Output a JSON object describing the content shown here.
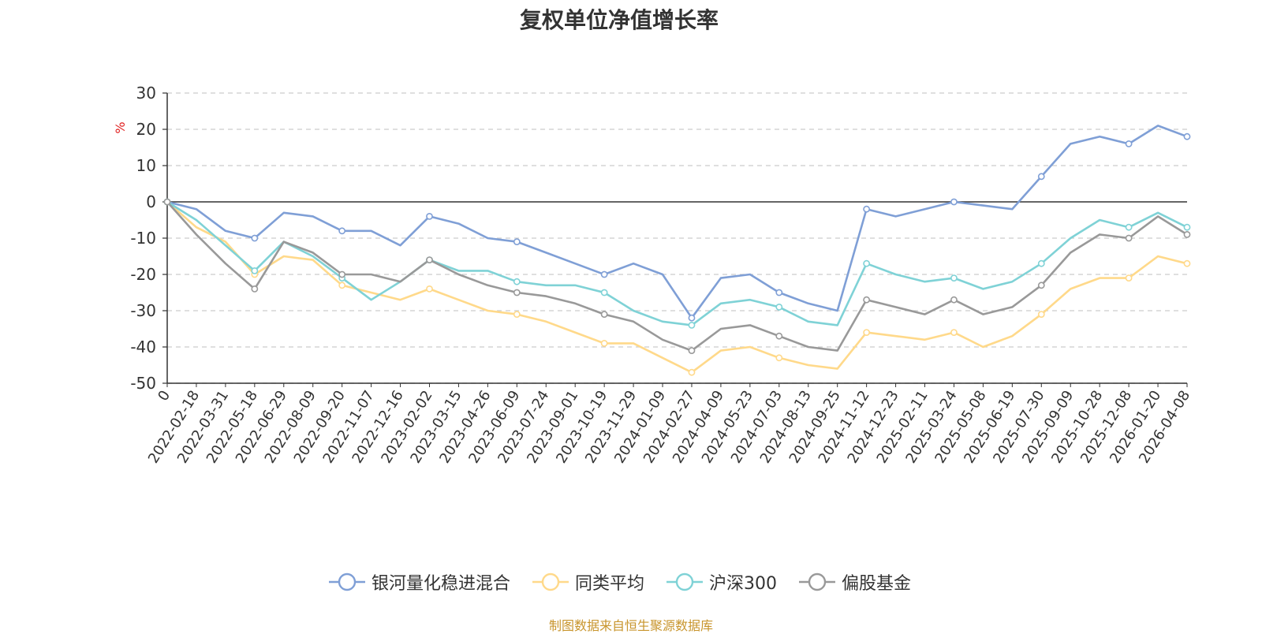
{
  "chart_data": {
    "type": "line",
    "title": "复权单位净值增长率",
    "ylabel": "%",
    "xlabel": "",
    "ylim": [
      -50,
      30
    ],
    "yticks": [
      30,
      20,
      10,
      0,
      -10,
      -20,
      -30,
      -40,
      -50
    ],
    "grid": true,
    "legend_position": "bottom",
    "categories": [
      "0",
      "2022-02-18",
      "2022-03-31",
      "2022-05-18",
      "2022-06-29",
      "2022-08-09",
      "2022-09-20",
      "2022-11-07",
      "2022-12-16",
      "2023-02-02",
      "2023-03-15",
      "2023-04-26",
      "2023-06-09",
      "2023-07-24",
      "2023-09-01",
      "2023-10-19",
      "2023-11-29",
      "2024-01-09",
      "2024-02-27",
      "2024-04-09",
      "2024-05-23",
      "2024-07-03",
      "2024-08-13",
      "2024-09-25",
      "2024-11-12",
      "2024-12-23",
      "2025-02-11",
      "2025-03-24",
      "2025-05-08",
      "2025-06-19",
      "2025-07-30",
      "2025-09-09",
      "2025-10-28",
      "2025-12-08",
      "2026-01-20",
      "2026-04-08"
    ],
    "series": [
      {
        "name": "银河量化稳进混合",
        "color": "#7f9fd6",
        "values": [
          0,
          -2,
          -8,
          -10,
          -3,
          -4,
          -8,
          -8,
          -12,
          -4,
          -6,
          -10,
          -11,
          -14,
          -17,
          -20,
          -17,
          -20,
          -32,
          -21,
          -20,
          -25,
          -28,
          -30,
          -2,
          -4,
          -2,
          0,
          -1,
          -2,
          7,
          16,
          18,
          16,
          21,
          18
        ]
      },
      {
        "name": "同类平均",
        "color": "#ffd98a",
        "values": [
          0,
          -7,
          -11,
          -20,
          -15,
          -16,
          -23,
          -25,
          -27,
          -24,
          -27,
          -30,
          -31,
          -33,
          -36,
          -39,
          -39,
          -43,
          -47,
          -41,
          -40,
          -43,
          -45,
          -46,
          -36,
          -37,
          -38,
          -36,
          -40,
          -37,
          -31,
          -24,
          -21,
          -21,
          -15,
          -17
        ]
      },
      {
        "name": "沪深300",
        "color": "#7fd2d6",
        "values": [
          0,
          -5,
          -12,
          -19,
          -11,
          -15,
          -21,
          -27,
          -22,
          -16,
          -19,
          -19,
          -22,
          -23,
          -23,
          -25,
          -30,
          -33,
          -34,
          -28,
          -27,
          -29,
          -33,
          -34,
          -17,
          -20,
          -22,
          -21,
          -24,
          -22,
          -17,
          -10,
          -5,
          -7,
          -3,
          -7
        ]
      },
      {
        "name": "偏股基金",
        "color": "#999999",
        "values": [
          0,
          -9,
          -17,
          -24,
          -11,
          -14,
          -20,
          -20,
          -22,
          -16,
          -20,
          -23,
          -25,
          -26,
          -28,
          -31,
          -33,
          -38,
          -41,
          -35,
          -34,
          -37,
          -40,
          -41,
          -27,
          -29,
          -31,
          -27,
          -31,
          -29,
          -23,
          -14,
          -9,
          -10,
          -4,
          -9
        ]
      }
    ]
  },
  "source_note": "制图数据来自恒生聚源数据库"
}
